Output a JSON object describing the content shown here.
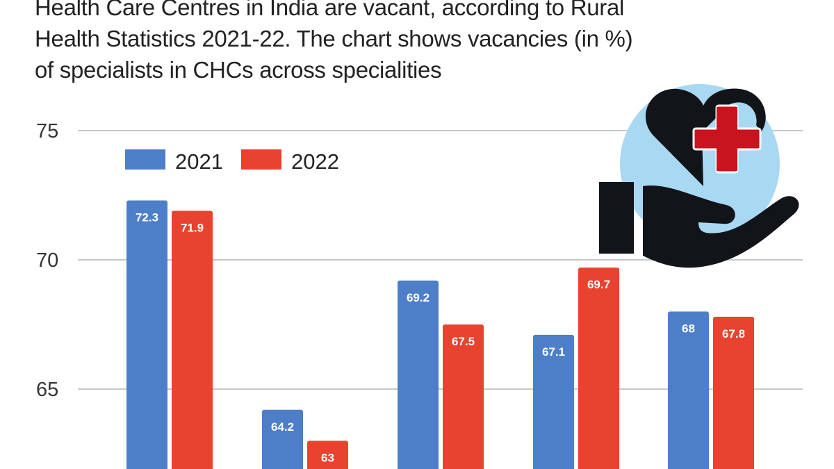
{
  "intro_lines": [
    "Health Care Centres in India are vacant, according to Rural",
    "Health Statistics 2021-22. The chart shows vacancies (in %)",
    "of specialists in CHCs across specialities"
  ],
  "icon": "heart-hand-medical-cross-icon",
  "colors": {
    "2021": "#4d7fc9",
    "2022": "#e8432f",
    "icon_circle": "#a9d8f3",
    "icon_cross": "#c8141e",
    "icon_dark": "#111418"
  },
  "chart_data": {
    "type": "bar",
    "title": "",
    "xlabel": "",
    "ylabel": "",
    "ylim": [
      60,
      75
    ],
    "yticks": [
      "65",
      "70",
      "75"
    ],
    "grid": true,
    "legend": "top-left",
    "series": [
      {
        "name": "2021",
        "values": [
          72.3,
          64.2,
          69.2,
          67.1,
          68
        ],
        "labels": [
          "72.3",
          "64.2",
          "69.2",
          "67.1",
          "68"
        ]
      },
      {
        "name": "2022",
        "values": [
          71.9,
          63,
          67.5,
          69.7,
          67.8
        ],
        "labels": [
          "71.9",
          "63",
          "67.5",
          "69.7",
          "67.8"
        ]
      }
    ]
  }
}
